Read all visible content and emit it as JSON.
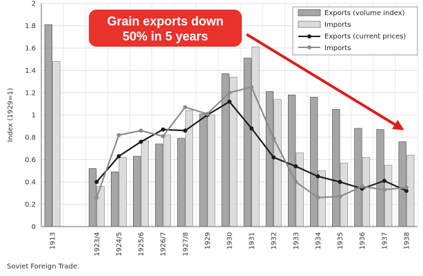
{
  "chart_data": {
    "type": "bar",
    "ylabel": "Index (1929=1)",
    "xlabel": "",
    "ylim": [
      0,
      2
    ],
    "yticks": [
      "0",
      "0.2",
      "0.4",
      "0.6",
      "0.8",
      "1",
      "1.2",
      "1.4",
      "1.6",
      "1.8",
      "2"
    ],
    "categories": [
      "1913",
      "1923/4",
      "1924/5",
      "1925/6",
      "1926/7",
      "1927/8",
      "1929",
      "1930",
      "1931",
      "1932",
      "1933",
      "1934",
      "1935",
      "1936",
      "1937",
      "1938"
    ],
    "series": [
      {
        "name": "Exports (volume index)",
        "kind": "bar",
        "color": "#a6a6a6",
        "values": [
          1.81,
          0.52,
          0.49,
          0.63,
          0.74,
          0.79,
          1.01,
          1.37,
          1.51,
          1.21,
          1.18,
          1.16,
          1.05,
          0.88,
          0.87,
          0.76
        ]
      },
      {
        "name": "Imports",
        "kind": "bar",
        "color": "#dcdcdc",
        "values": [
          1.48,
          0.36,
          0.62,
          0.77,
          0.82,
          1.04,
          1.0,
          1.34,
          1.61,
          1.14,
          0.66,
          0.5,
          0.57,
          0.62,
          0.55,
          0.64
        ]
      },
      {
        "name": "Exports (current prices)",
        "kind": "line",
        "color": "#1a1a1a",
        "values": [
          null,
          0.4,
          0.63,
          0.76,
          0.87,
          0.86,
          1.0,
          1.12,
          0.88,
          0.62,
          0.54,
          0.45,
          0.4,
          0.34,
          0.41,
          0.32
        ]
      },
      {
        "name": "Imports",
        "kind": "line",
        "color": "#8c8c8c",
        "values": [
          null,
          0.26,
          0.82,
          0.86,
          0.81,
          1.07,
          1.01,
          1.2,
          1.25,
          0.79,
          0.4,
          0.26,
          0.27,
          0.36,
          0.33,
          0.35
        ]
      }
    ],
    "annotation": {
      "line1": "Grain exports down",
      "line2": "50% in 5 years",
      "fill": "#e8322b",
      "arrow_color": "#d9201b"
    }
  },
  "caption": "Soviet Foreign Trade."
}
